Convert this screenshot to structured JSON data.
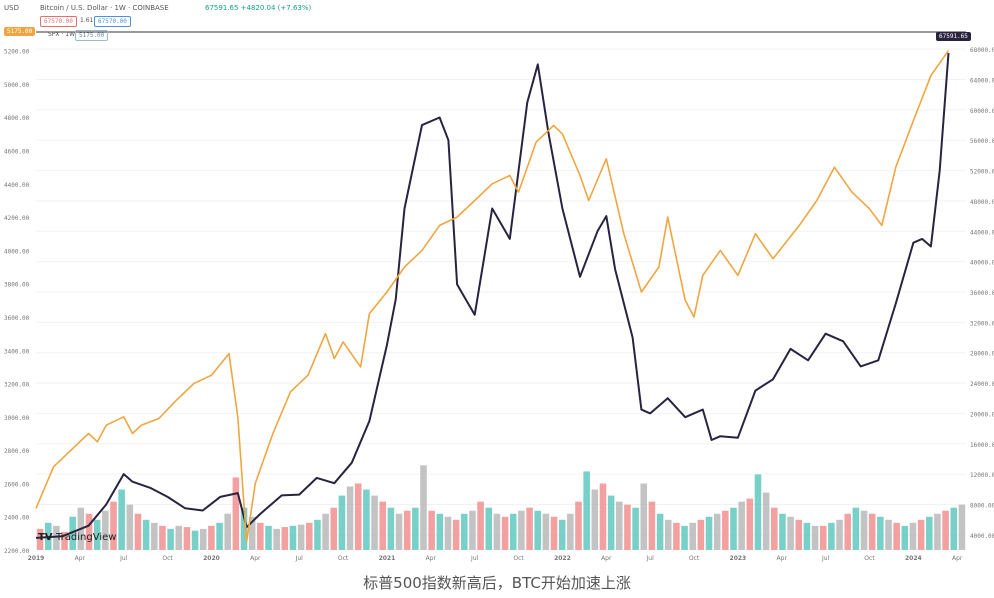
{
  "header": {
    "currency": "USD",
    "symbol_text": "Bitcoin / U.S. Dollar · 1W · COINBASE",
    "price_readout": "67591.65 +4820.04 (+7.63%)",
    "bid_pill": "67570.00",
    "spread": "1.61",
    "ask_pill": "67570.00",
    "spx_label": "SPX · 1W",
    "spx_pill": "5175.00"
  },
  "axes": {
    "right_price_tag": "67591.65",
    "left_price_tag": "5175.00"
  },
  "caption": "标普500指数新高后，BTC开始加速上涨",
  "watermark": "TradingView",
  "colors": {
    "btc": "#2a2340",
    "spx": "#f0a640",
    "vol_up": "#5fc9c0",
    "vol_down": "#f08f8f",
    "vol_neutral": "#b9b9b9"
  },
  "chart_data": {
    "type": "line",
    "title": "",
    "x_ticks": [
      "2019",
      "Apr",
      "Jul",
      "Oct",
      "2020",
      "Apr",
      "Jul",
      "Oct",
      "2021",
      "Apr",
      "Jul",
      "Oct",
      "2022",
      "Apr",
      "Jul",
      "Oct",
      "2023",
      "Apr",
      "Jul",
      "Oct",
      "2024",
      "Apr"
    ],
    "x_range": [
      2019.0,
      2024.3
    ],
    "left_axis": {
      "name": "SPX",
      "ticks": [
        2200,
        2400,
        2600,
        2800,
        3000,
        3200,
        3400,
        3600,
        3800,
        4000,
        4200,
        4400,
        4600,
        4800,
        5000,
        5200
      ],
      "range": [
        2200,
        5300
      ]
    },
    "right_axis": {
      "name": "BTC",
      "ticks": [
        4000,
        8000,
        12000,
        16000,
        20000,
        24000,
        28000,
        32000,
        36000,
        40000,
        44000,
        48000,
        52000,
        56000,
        60000,
        64000,
        68000
      ],
      "range": [
        2000,
        70000
      ]
    },
    "series": [
      {
        "name": "BTC",
        "axis": "right",
        "x": [
          2019.0,
          2019.15,
          2019.3,
          2019.4,
          2019.5,
          2019.55,
          2019.65,
          2019.75,
          2019.85,
          2019.95,
          2020.05,
          2020.15,
          2020.2,
          2020.28,
          2020.4,
          2020.5,
          2020.6,
          2020.7,
          2020.8,
          2020.9,
          2021.0,
          2021.05,
          2021.1,
          2021.2,
          2021.3,
          2021.35,
          2021.4,
          2021.45,
          2021.5,
          2021.55,
          2021.6,
          2021.7,
          2021.8,
          2021.86,
          2021.92,
          2022.0,
          2022.1,
          2022.2,
          2022.25,
          2022.3,
          2022.4,
          2022.45,
          2022.5,
          2022.6,
          2022.7,
          2022.8,
          2022.85,
          2022.9,
          2023.0,
          2023.1,
          2023.2,
          2023.3,
          2023.4,
          2023.5,
          2023.6,
          2023.7,
          2023.8,
          2023.9,
          2024.0,
          2024.05,
          2024.1,
          2024.15,
          2024.2
        ],
        "values": [
          3600,
          3800,
          5200,
          8000,
          12000,
          11000,
          10200,
          9000,
          7500,
          7200,
          9000,
          9500,
          5000,
          6800,
          9200,
          9300,
          11500,
          10800,
          13500,
          19000,
          29000,
          35000,
          47000,
          58000,
          59000,
          56000,
          37000,
          35000,
          33000,
          40000,
          47000,
          43000,
          61000,
          66000,
          57000,
          47000,
          38000,
          44000,
          46000,
          39000,
          30000,
          20500,
          20000,
          22000,
          19500,
          20500,
          16500,
          17000,
          16800,
          23000,
          24500,
          28500,
          27000,
          30500,
          29500,
          26200,
          27000,
          34500,
          42500,
          43000,
          42000,
          52000,
          67500
        ]
      },
      {
        "name": "SPX",
        "axis": "left",
        "x": [
          2019.0,
          2019.1,
          2019.2,
          2019.3,
          2019.35,
          2019.4,
          2019.5,
          2019.55,
          2019.6,
          2019.7,
          2019.8,
          2019.9,
          2020.0,
          2020.1,
          2020.15,
          2020.2,
          2020.25,
          2020.35,
          2020.45,
          2020.55,
          2020.65,
          2020.7,
          2020.75,
          2020.85,
          2020.9,
          2021.0,
          2021.1,
          2021.2,
          2021.3,
          2021.4,
          2021.5,
          2021.6,
          2021.7,
          2021.75,
          2021.85,
          2021.95,
          2022.0,
          2022.1,
          2022.15,
          2022.25,
          2022.35,
          2022.45,
          2022.55,
          2022.6,
          2022.7,
          2022.75,
          2022.8,
          2022.9,
          2023.0,
          2023.1,
          2023.2,
          2023.35,
          2023.45,
          2023.55,
          2023.65,
          2023.75,
          2023.82,
          2023.9,
          2024.0,
          2024.1,
          2024.2
        ],
        "values": [
          2450,
          2700,
          2800,
          2900,
          2850,
          2950,
          3000,
          2900,
          2950,
          2990,
          3100,
          3200,
          3250,
          3380,
          3000,
          2250,
          2600,
          2900,
          3150,
          3250,
          3500,
          3350,
          3450,
          3300,
          3620,
          3750,
          3900,
          4000,
          4150,
          4200,
          4300,
          4400,
          4450,
          4350,
          4650,
          4750,
          4700,
          4450,
          4300,
          4550,
          4100,
          3750,
          3900,
          4200,
          3700,
          3600,
          3850,
          4000,
          3850,
          4100,
          3950,
          4150,
          4300,
          4500,
          4350,
          4250,
          4150,
          4500,
          4780,
          5050,
          5200
        ]
      }
    ],
    "volume": {
      "x_range": [
        2019.0,
        2024.3
      ],
      "note": "relative weekly volume bars, 0-1 scale",
      "values": [
        0.25,
        0.35,
        0.3,
        0.2,
        0.45,
        0.6,
        0.5,
        0.4,
        0.55,
        0.7,
        0.9,
        0.65,
        0.5,
        0.4,
        0.35,
        0.3,
        0.25,
        0.3,
        0.28,
        0.22,
        0.25,
        0.3,
        0.35,
        0.5,
        1.1,
        0.6,
        0.45,
        0.35,
        0.3,
        0.25,
        0.28,
        0.3,
        0.32,
        0.35,
        0.4,
        0.5,
        0.6,
        0.8,
        0.95,
        1.0,
        0.9,
        0.8,
        0.7,
        0.6,
        0.5,
        0.55,
        0.6,
        1.3,
        0.55,
        0.5,
        0.45,
        0.4,
        0.5,
        0.55,
        0.7,
        0.6,
        0.5,
        0.45,
        0.5,
        0.55,
        0.6,
        0.55,
        0.5,
        0.45,
        0.4,
        0.5,
        0.7,
        1.2,
        0.9,
        1.0,
        0.8,
        0.7,
        0.65,
        0.6,
        1.0,
        0.7,
        0.5,
        0.4,
        0.35,
        0.3,
        0.35,
        0.4,
        0.45,
        0.5,
        0.55,
        0.6,
        0.7,
        0.75,
        1.15,
        0.85,
        0.6,
        0.5,
        0.45,
        0.4,
        0.35,
        0.3,
        0.3,
        0.35,
        0.4,
        0.5,
        0.6,
        0.55,
        0.5,
        0.45,
        0.4,
        0.35,
        0.3,
        0.35,
        0.4,
        0.45,
        0.5,
        0.55,
        0.6,
        0.65
      ]
    }
  }
}
